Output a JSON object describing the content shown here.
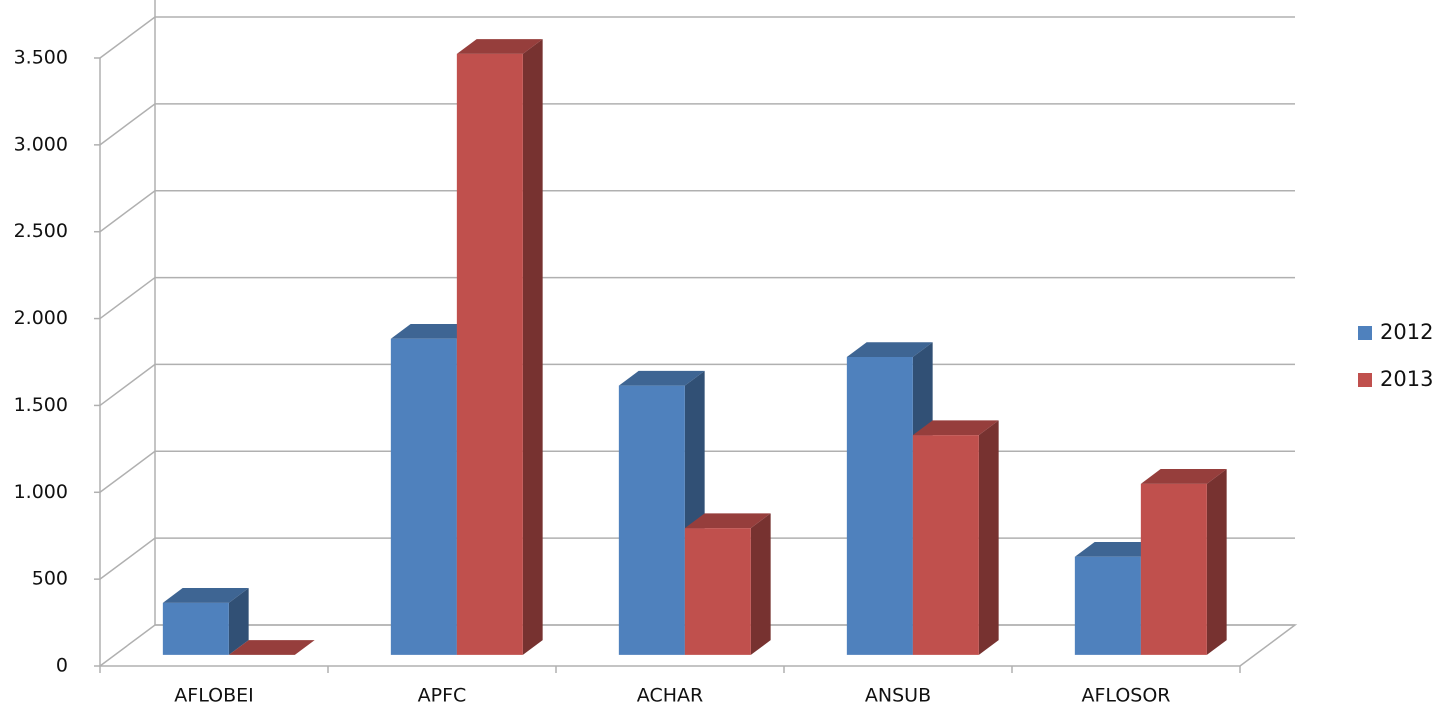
{
  "chart_data": {
    "type": "bar3d",
    "categories": [
      "AFLOBEI",
      "APFC",
      "ACHAR",
      "ANSUB",
      "AFLOSOR"
    ],
    "series": [
      {
        "name": "2012",
        "color": "#4f81bd",
        "values": [
          300,
          1820,
          1550,
          1715,
          565
        ]
      },
      {
        "name": "2013",
        "color": "#c0504d",
        "values": [
          0,
          3460,
          730,
          1265,
          985
        ]
      }
    ],
    "ylim": [
      0,
      4000
    ],
    "yticks": [
      0,
      500,
      {
        "value": 1000,
        "label": "1.000"
      },
      {
        "value": 1500,
        "label": "1.500"
      },
      {
        "value": 2000,
        "label": "2.000"
      },
      {
        "value": 2500,
        "label": "2.500"
      },
      {
        "value": 3000,
        "label": "3.000"
      },
      {
        "value": 3500,
        "label": "3.500"
      }
    ],
    "grid": true,
    "legend": "right"
  }
}
